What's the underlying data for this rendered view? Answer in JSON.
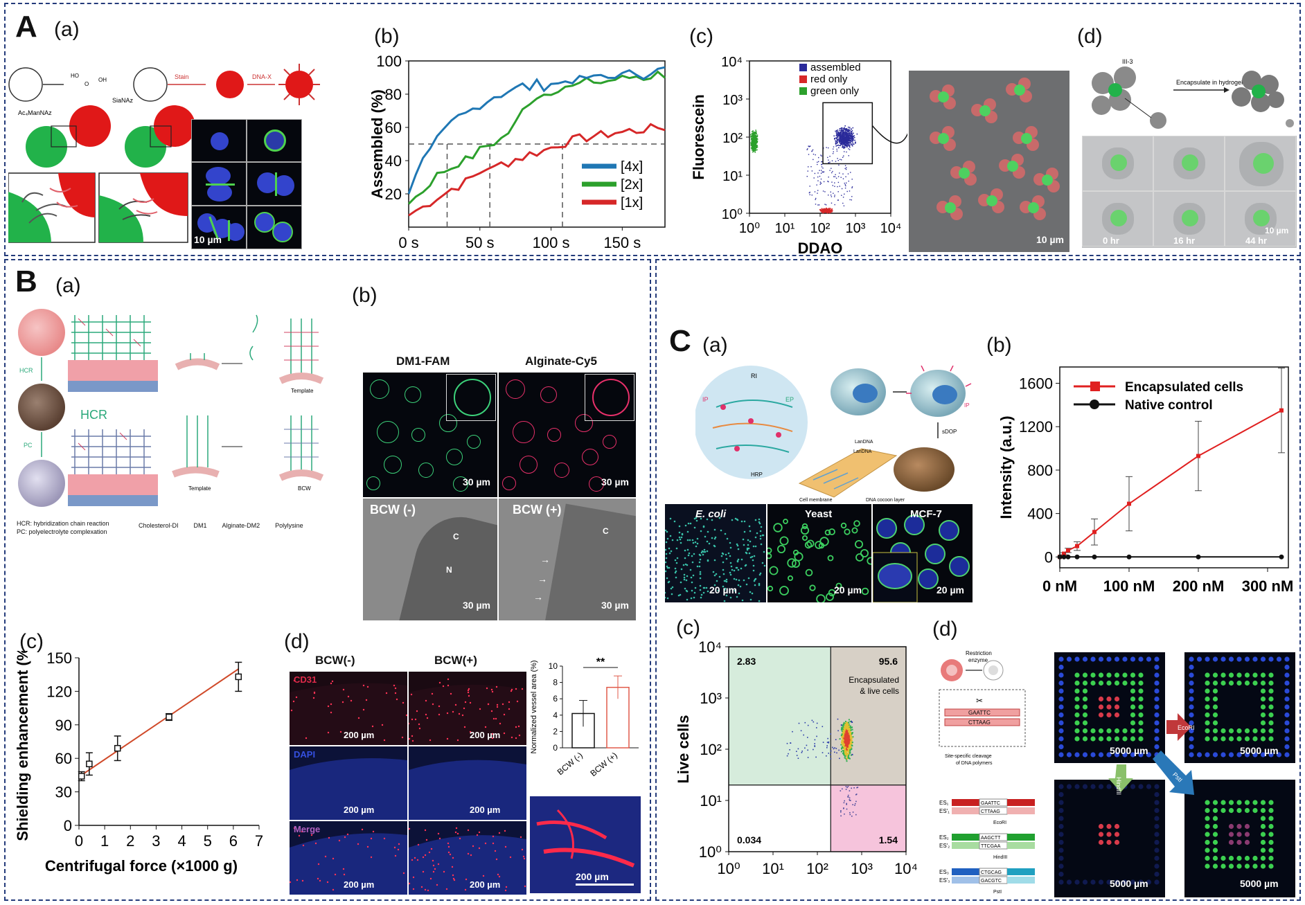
{
  "panels": {
    "A": "A",
    "B": "B",
    "C": "C",
    "a": "(a)",
    "b": "(b)",
    "c": "(c)",
    "d": "(d)"
  },
  "A": {
    "scheme": {
      "reagent1": "Ac₄ManNAz",
      "reagent2": "SiaNAz",
      "stain": "Stain",
      "dnax": "DNA-X"
    },
    "micro_scale": "10 µm",
    "facs_scale": "10 µm",
    "d_scheme": {
      "label": "Encapsulate in hydrogel",
      "helper": "III-3"
    },
    "time_labels": [
      "0 hr",
      "16 hr",
      "44 hr"
    ],
    "time_scale": "10 µm"
  },
  "B": {
    "a_labels": {
      "hcr": "HCR",
      "hcr_big": "HCR",
      "pc": "PC",
      "template": "Template",
      "template2": "Template",
      "bcw": "BCW",
      "legend": [
        "HCR: hybridization chain reaction",
        "PC: polyelectrolyte complexation"
      ],
      "key": [
        "Cholesterol-DI",
        "DM1",
        "Alginate-DM2",
        "Polylysine"
      ]
    },
    "b_titles": [
      "DM1-FAM",
      "Alginate-Cy5"
    ],
    "b_em_labels": [
      "BCW (-)",
      "BCW (+)"
    ],
    "b_scale": "30 µm",
    "b_em_letters": [
      "C",
      "N",
      "C"
    ],
    "d_titles": [
      "BCW(-)",
      "BCW(+)"
    ],
    "d_channels": [
      "CD31",
      "DAPI",
      "Merge"
    ],
    "d_scale": "200 µm",
    "d_inset_scale": "200 µm"
  },
  "C": {
    "a_labels": [
      "E. coli",
      "Yeast",
      "MCF-7"
    ],
    "a_scale": "20 µm",
    "a_scheme": {
      "ri": "RI",
      "ip": "IP",
      "ep": "EP",
      "ip2": "IP",
      "hrp": "HRP",
      "sdop": "sDOP",
      "dna1": "LanDNA",
      "dna2": "LanDNA",
      "membrane": "Cell membrane",
      "cocoon": "DNA cocoon layer"
    },
    "c_quadrants": {
      "tl": "2.83",
      "tr": "95.6",
      "bl": "0.034",
      "br": "1.54",
      "tr_label1": "Encapsulated",
      "tr_label2": "& live cells"
    },
    "c_ylabel": "Live cells",
    "d_scale": "5000 µm",
    "d_arrows": [
      "EcoRI",
      "HindIII",
      "PstI"
    ],
    "d_scheme": {
      "enzyme1": "Restriction",
      "enzyme2": "enzyme",
      "cleave1": "Site-specific cleavage",
      "cleave2": "of DNA polymers",
      "seq_top": "GAATTC",
      "seq_bot": "CTTAAG",
      "rows": [
        {
          "es": "ES₁",
          "es2": "ES′₁",
          "top": "GAATTC",
          "bot": "CTTAAG",
          "enz": "EcoRI"
        },
        {
          "es": "ES₂",
          "es2": "ES′₂",
          "top": "AAGCTT",
          "bot": "TTCGAA",
          "enz": "HindIII"
        },
        {
          "es": "ES₃",
          "es2": "ES′₃",
          "top": "CTGCAG",
          "bot": "GACGTC",
          "enz": "PstI"
        }
      ]
    }
  },
  "colors": {
    "blue": "#1f77b4",
    "green": "#2ca02c",
    "red": "#d62728",
    "frame": "#233a7a",
    "lineRed": "#e02020"
  },
  "chart_data": [
    {
      "id": "Ab",
      "type": "line",
      "xlabel": "",
      "ylabel": "Assembled (%)",
      "xlim": [
        0,
        180
      ],
      "ylim": [
        0,
        100
      ],
      "xticks": [
        {
          "v": 0,
          "t": "0 s"
        },
        {
          "v": 50,
          "t": "50 s"
        },
        {
          "v": 100,
          "t": "100 s"
        },
        {
          "v": 150,
          "t": "150 s"
        }
      ],
      "yticks": [
        20,
        40,
        60,
        80,
        100
      ],
      "reference_y": 50,
      "reference_x": [
        27,
        57,
        108
      ],
      "series": [
        {
          "name": "[4x]",
          "color": "#1f77b4",
          "x": [
            0,
            5,
            10,
            15,
            20,
            25,
            30,
            35,
            40,
            45,
            50,
            55,
            60,
            65,
            70,
            75,
            80,
            85,
            90,
            95,
            100,
            105,
            110,
            115,
            120,
            125,
            130,
            135,
            140,
            145,
            150,
            155,
            160,
            165,
            170,
            175,
            180
          ],
          "y": [
            20,
            33,
            40,
            45,
            52,
            57,
            62,
            66,
            68,
            71,
            74,
            76,
            79,
            80,
            82,
            83,
            85,
            84,
            86,
            85,
            87,
            86,
            88,
            89,
            88,
            90,
            89,
            91,
            90,
            92,
            91,
            92,
            93,
            92,
            94,
            94,
            95
          ]
        },
        {
          "name": "[2x]",
          "color": "#2ca02c",
          "x": [
            0,
            5,
            10,
            15,
            20,
            25,
            30,
            35,
            40,
            45,
            50,
            55,
            60,
            65,
            70,
            75,
            80,
            85,
            90,
            95,
            100,
            105,
            110,
            115,
            120,
            125,
            130,
            135,
            140,
            145,
            150,
            155,
            160,
            165,
            170,
            175,
            180
          ],
          "y": [
            14,
            18,
            22,
            27,
            31,
            34,
            36,
            39,
            40,
            43,
            46,
            49,
            51,
            53,
            57,
            62,
            70,
            76,
            79,
            80,
            82,
            84,
            85,
            84,
            86,
            87,
            88,
            87,
            88,
            89,
            89,
            90,
            91,
            90,
            91,
            92,
            92
          ]
        },
        {
          "name": "[1x]",
          "color": "#d62728",
          "x": [
            0,
            5,
            10,
            15,
            20,
            25,
            30,
            35,
            40,
            45,
            50,
            55,
            60,
            65,
            70,
            75,
            80,
            85,
            90,
            95,
            100,
            105,
            110,
            115,
            120,
            125,
            130,
            135,
            140,
            145,
            150,
            155,
            160,
            165,
            170,
            175,
            180
          ],
          "y": [
            7,
            10,
            12,
            15,
            18,
            20,
            23,
            25,
            27,
            30,
            33,
            36,
            35,
            38,
            39,
            41,
            42,
            44,
            45,
            46,
            48,
            50,
            51,
            52,
            53,
            54,
            55,
            55,
            56,
            57,
            57,
            58,
            58,
            59,
            59,
            60,
            60
          ]
        }
      ],
      "legend": "bottom-right"
    },
    {
      "id": "Ac",
      "type": "scatter",
      "xlabel": "DDAO",
      "ylabel": "Fluorescein",
      "scale": "log",
      "xlim": [
        1,
        10000
      ],
      "ylim": [
        1,
        10000
      ],
      "xticks": [
        "10⁰",
        "10¹",
        "10²",
        "10³",
        "10⁴"
      ],
      "yticks": [
        "10⁰",
        "10¹",
        "10²",
        "10³",
        "10⁴"
      ],
      "series": [
        {
          "name": "assembled",
          "color": "#2a2a9a",
          "center": [
            500,
            100
          ],
          "spread": [
            0.35,
            0.35
          ]
        },
        {
          "name": "red only",
          "color": "#d62728",
          "center": [
            150,
            1.2
          ],
          "spread": [
            0.25,
            0.08
          ]
        },
        {
          "name": "green only",
          "color": "#2ca02c",
          "center": [
            1.3,
            80
          ],
          "spread": [
            0.12,
            0.35
          ]
        }
      ],
      "legend": "top-right"
    },
    {
      "id": "Bc",
      "type": "line",
      "xlabel": "Centrifugal force (×1000 g)",
      "ylabel": "Shielding enhancement (%)",
      "xlim": [
        0,
        7
      ],
      "ylim": [
        0,
        150
      ],
      "xticks": [
        0,
        1,
        2,
        3,
        4,
        5,
        6,
        7
      ],
      "yticks": [
        0,
        30,
        60,
        90,
        120,
        150
      ],
      "points": [
        {
          "x": 0.1,
          "y": 44,
          "err": 4
        },
        {
          "x": 0.4,
          "y": 55,
          "err": 10
        },
        {
          "x": 1.5,
          "y": 69,
          "err": 11
        },
        {
          "x": 3.5,
          "y": 97,
          "err": 3
        },
        {
          "x": 6.2,
          "y": 133,
          "err": 13
        }
      ],
      "fit": [
        [
          0.1,
          45
        ],
        [
          6.2,
          140
        ]
      ]
    },
    {
      "id": "Bd",
      "type": "bar",
      "ylabel": "Normalized vessel area (%)",
      "categories": [
        "BCW (-)",
        "BCW (+)"
      ],
      "values": [
        4.2,
        7.4
      ],
      "errors": [
        1.6,
        1.4
      ],
      "ylim": [
        0,
        10
      ],
      "yticks": [
        0,
        2,
        4,
        6,
        8,
        10
      ],
      "significance": "**"
    },
    {
      "id": "Cb",
      "type": "line",
      "xlabel": "",
      "ylabel": "Intensity (a.u.)",
      "xlim": [
        0,
        330
      ],
      "ylim": [
        -100,
        1750
      ],
      "xticks": [
        {
          "v": 0,
          "t": "0 nM"
        },
        {
          "v": 100,
          "t": "100 nM"
        },
        {
          "v": 200,
          "t": "200 nM"
        },
        {
          "v": 300,
          "t": "300 nM"
        }
      ],
      "yticks": [
        0,
        400,
        800,
        1200,
        1600
      ],
      "series": [
        {
          "name": "Encapsulated cells",
          "color": "#e02020",
          "x": [
            0,
            6,
            12,
            25,
            50,
            100,
            200,
            320
          ],
          "y": [
            0,
            30,
            60,
            100,
            230,
            490,
            930,
            1350
          ],
          "err": [
            0,
            10,
            20,
            40,
            120,
            250,
            320,
            390
          ]
        },
        {
          "name": "Native control",
          "color": "#111111",
          "x": [
            0,
            6,
            12,
            25,
            50,
            100,
            200,
            320
          ],
          "y": [
            0,
            0,
            0,
            0,
            0,
            0,
            0,
            0
          ]
        }
      ],
      "legend": "top-left"
    },
    {
      "id": "Cc",
      "type": "scatter",
      "xlabel": "",
      "ylabel": "Live cells",
      "scale": "log",
      "xlim": [
        1,
        10000
      ],
      "ylim": [
        1,
        10000
      ],
      "xticks": [
        "10⁰",
        "10¹",
        "10²",
        "10³",
        "10⁴"
      ],
      "yticks": [
        "10⁰",
        "10¹",
        "10²",
        "10³",
        "10⁴"
      ],
      "gate": [
        200,
        20
      ]
    }
  ]
}
